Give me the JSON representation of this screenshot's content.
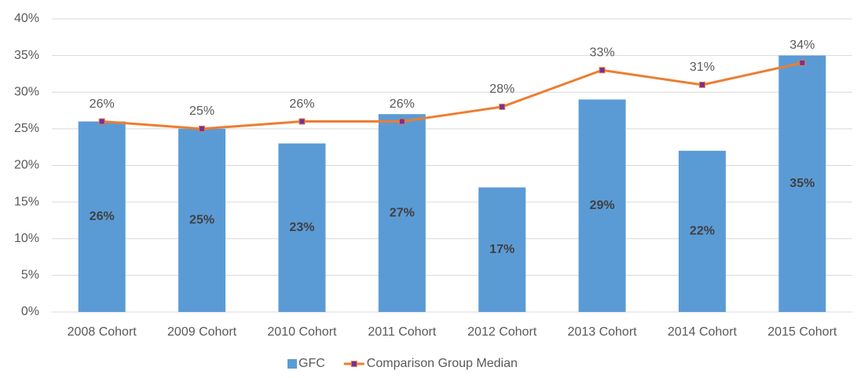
{
  "chart_data": {
    "type": "bar",
    "categories": [
      "2008 Cohort",
      "2009 Cohort",
      "2010 Cohort",
      "2011 Cohort",
      "2012 Cohort",
      "2013 Cohort",
      "2014 Cohort",
      "2015 Cohort"
    ],
    "series": [
      {
        "name": "GFC",
        "type": "bar",
        "color": "#5b9bd5",
        "values": [
          26,
          25,
          23,
          27,
          17,
          29,
          22,
          35
        ],
        "value_labels": [
          "26%",
          "25%",
          "23%",
          "27%",
          "17%",
          "29%",
          "22%",
          "35%"
        ]
      },
      {
        "name": "Comparison Group Median",
        "type": "line",
        "color": "#ed7d31",
        "marker_color": "#7030a0",
        "values": [
          26,
          25,
          26,
          26,
          28,
          33,
          31,
          34
        ],
        "value_labels": [
          "26%",
          "25%",
          "26%",
          "26%",
          "28%",
          "33%",
          "31%",
          "34%"
        ]
      }
    ],
    "ylim": [
      0,
      40
    ],
    "yticks": [
      {
        "value": 0,
        "label": "0%"
      },
      {
        "value": 5,
        "label": "5%"
      },
      {
        "value": 10,
        "label": "10%"
      },
      {
        "value": 15,
        "label": "15%"
      },
      {
        "value": 20,
        "label": "20%"
      },
      {
        "value": 25,
        "label": "25%"
      },
      {
        "value": 30,
        "label": "30%"
      },
      {
        "value": 35,
        "label": "35%"
      },
      {
        "value": 40,
        "label": "40%"
      }
    ],
    "grid": true,
    "legend": "bottom"
  }
}
